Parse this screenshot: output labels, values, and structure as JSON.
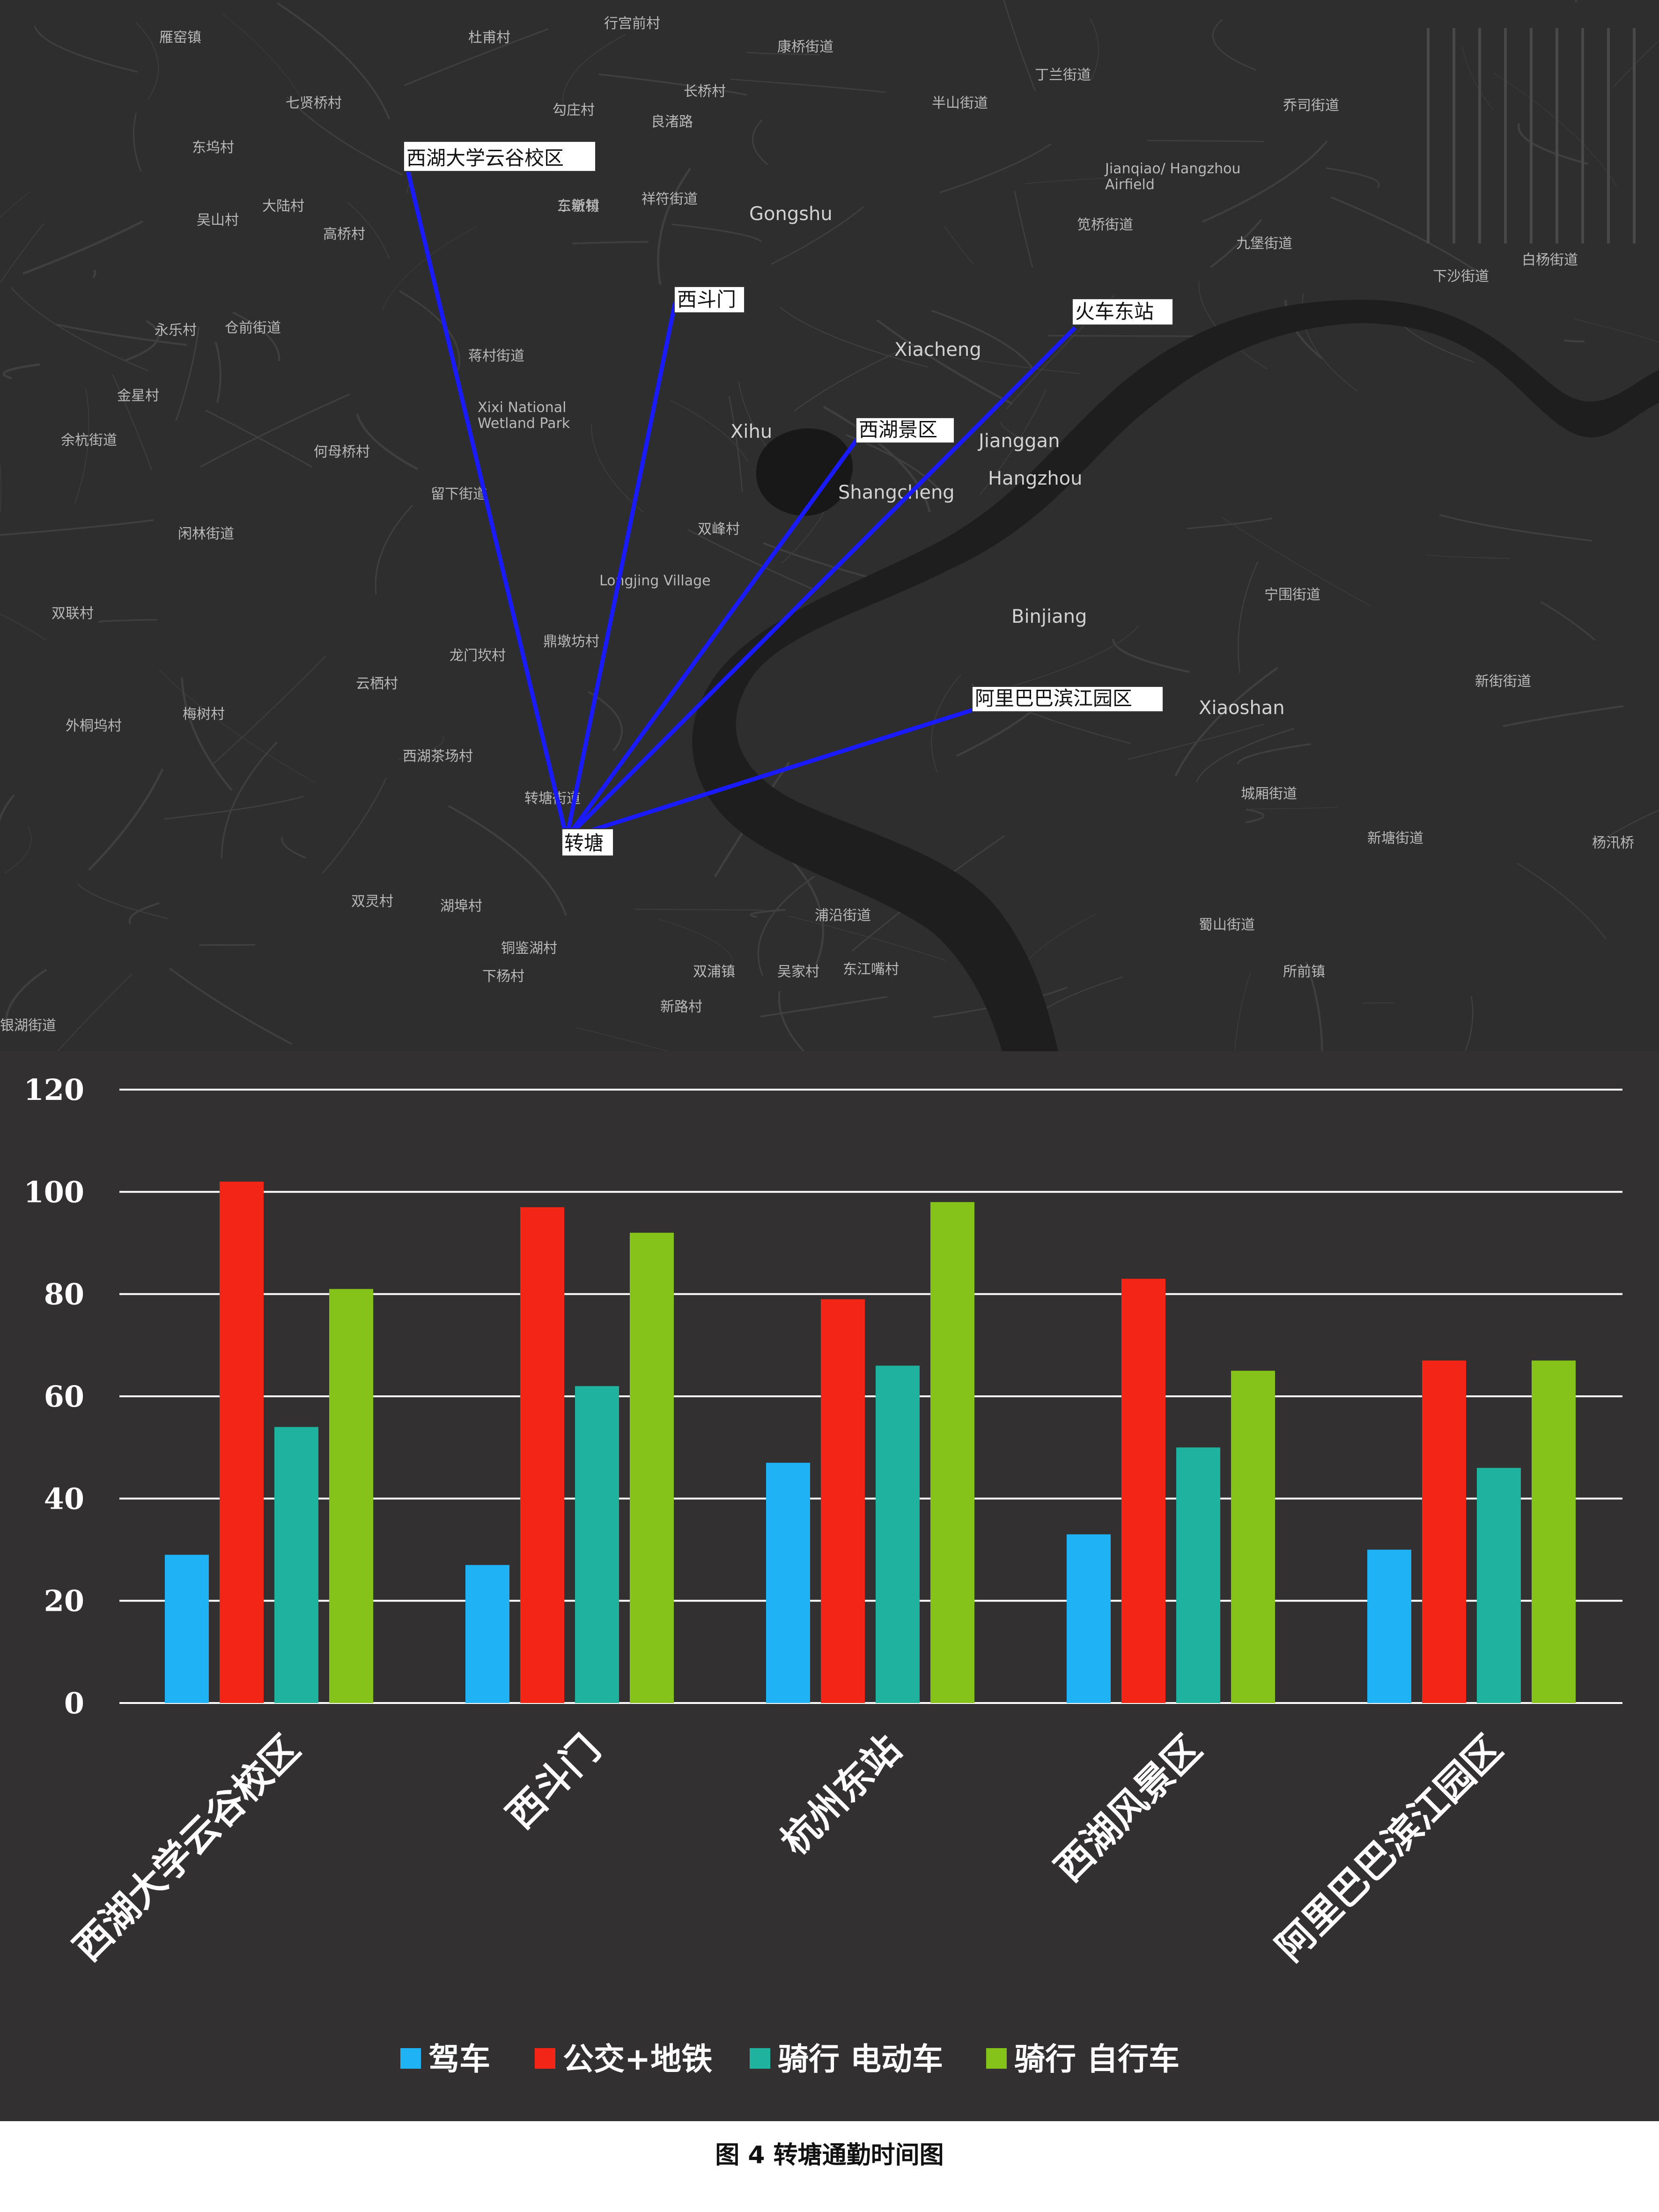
{
  "map": {
    "center_label": "转塘",
    "destinations": [
      {
        "label": "西湖大学云谷校区"
      },
      {
        "label": "西斗门"
      },
      {
        "label": "西湖景区"
      },
      {
        "label": "火车东站"
      },
      {
        "label": "阿里巴巴滨江园区"
      }
    ],
    "route_color": "#1a1aff",
    "place_names": [
      "雁窑镇",
      "杜甫村",
      "行宫前村",
      "康桥街道",
      "丁兰街道",
      "七贤桥村",
      "长桥村",
      "半山街道",
      "乔司街道",
      "东坞村",
      "勾庄村",
      "良渚路",
      "东新村",
      "三墩镇",
      "祥符街道",
      "Gongshu",
      "笕桥街道",
      "九堡街道",
      "白杨街道",
      "大陆村",
      "高桥村",
      "下沙街道",
      "吴山村",
      "Jianqiao/ Hangzhou Airfield",
      "永乐村",
      "仓前街道",
      "Xiacheng",
      "蒋村街道",
      "Xixi National Wetland Park",
      "金星村",
      "Xihu",
      "Jianggan",
      "Hangzhou",
      "余杭街道",
      "何母桥村",
      "留下街道",
      "Shangcheng",
      "闲林街道",
      "双峰村",
      "Longjing Village",
      "Binjiang",
      "宁围街道",
      "双联村",
      "鼎墩坊村",
      "云栖村",
      "外桐坞村",
      "龙门坎村",
      "梅树村",
      "Xiaoshan",
      "新街街道",
      "西湖茶场村",
      "城厢街道",
      "转塘街道",
      "新塘街道",
      "杨汛桥",
      "双灵村",
      "湖埠村",
      "浦沿街道",
      "蜀山街道",
      "所前镇",
      "双浦镇",
      "铜鉴湖村",
      "东江嘴村",
      "吴家村",
      "新路村",
      "银湖街道",
      "下杨村"
    ]
  },
  "chart_data": {
    "type": "bar",
    "categories": [
      "西湖大学云谷校区",
      "西斗门",
      "杭州东站",
      "西湖风景区",
      "阿里巴巴滨江园区"
    ],
    "series": [
      {
        "name": "驾车",
        "color": "#1fb2f5",
        "values": [
          29,
          27,
          47,
          33,
          30
        ]
      },
      {
        "name": "公交+地铁",
        "color": "#f22516",
        "values": [
          102,
          97,
          79,
          83,
          67
        ]
      },
      {
        "name": "骑行 电动车",
        "color": "#1fb39f",
        "values": [
          54,
          62,
          66,
          50,
          46
        ]
      },
      {
        "name": "骑行 自行车",
        "color": "#86c31a",
        "values": [
          81,
          92,
          98,
          65,
          67
        ]
      }
    ],
    "ylim": [
      0,
      120
    ],
    "yticks": [
      0,
      20,
      40,
      60,
      80,
      100,
      120
    ],
    "grid": true,
    "legend_position": "bottom"
  },
  "caption": "图 4  转塘通勤时间图"
}
